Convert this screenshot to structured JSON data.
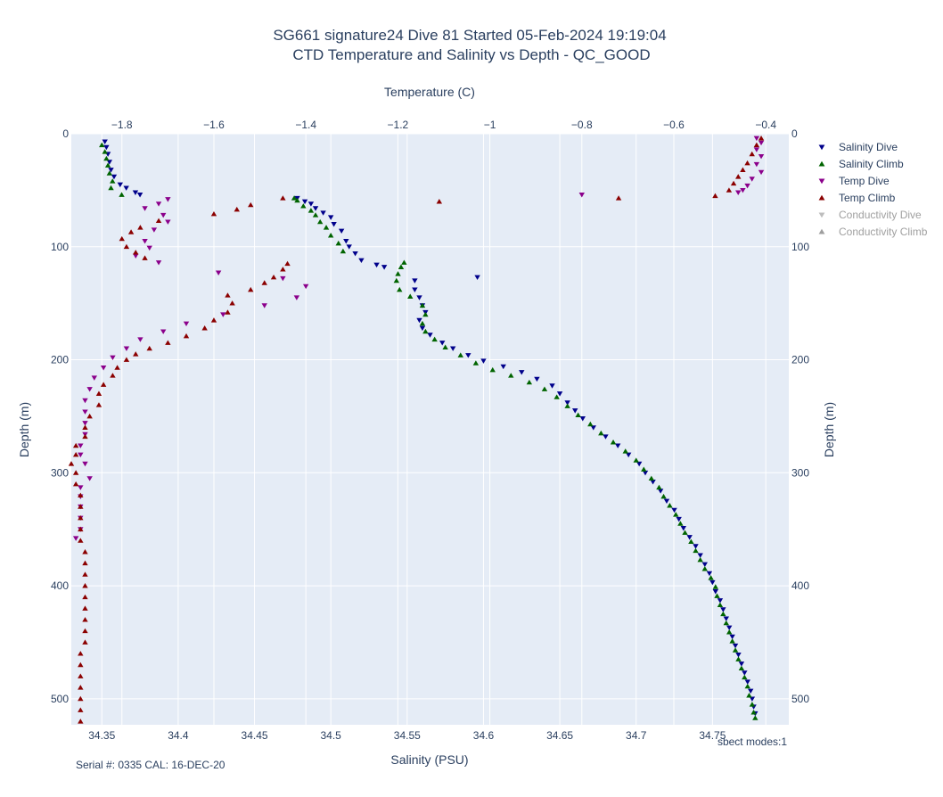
{
  "chart_data": {
    "type": "scatter",
    "title": "SG661 signature24 Dive 81 Started 05-Feb-2024 19:19:04",
    "subtitle": "CTD Temperature and Salinity vs Depth - QC_GOOD",
    "xlabel": "Salinity (PSU)",
    "x2label": "Temperature (C)",
    "ylabel": "Depth (m)",
    "y2label": "Depth (m)",
    "xlim": [
      34.33,
      34.8
    ],
    "x2lim": [
      -1.91,
      -0.35
    ],
    "ylim": [
      523,
      0
    ],
    "xticks": [
      34.35,
      34.4,
      34.45,
      34.5,
      34.55,
      34.6,
      34.65,
      34.7,
      34.75
    ],
    "xticklabels": [
      "34.35",
      "34.4",
      "34.45",
      "34.5",
      "34.55",
      "34.6",
      "34.65",
      "34.7",
      "34.75"
    ],
    "x2ticks": [
      -1.8,
      -1.6,
      -1.4,
      -1.2,
      -1.0,
      -0.8,
      -0.6,
      -0.4
    ],
    "x2ticklabels": [
      "−1.8",
      "−1.6",
      "−1.4",
      "−1.2",
      "−1",
      "−0.8",
      "−0.6",
      "−0.4"
    ],
    "yticks": [
      0,
      100,
      200,
      300,
      400,
      500
    ],
    "yticklabels": [
      "0",
      "100",
      "200",
      "300",
      "400",
      "500"
    ],
    "y2ticklabels": [
      "0",
      "100",
      "200",
      "300",
      "400",
      "500"
    ],
    "grid": true,
    "legend_position": "top-right",
    "series": [
      {
        "name": "Salinity Dive",
        "axis": "x",
        "marker": "triangle-down",
        "color": "#00008b",
        "points": [
          [
            34.352,
            7
          ],
          [
            34.353,
            12
          ],
          [
            34.354,
            18
          ],
          [
            34.355,
            25
          ],
          [
            34.356,
            32
          ],
          [
            34.358,
            38
          ],
          [
            34.362,
            45
          ],
          [
            34.366,
            48
          ],
          [
            34.372,
            52
          ],
          [
            34.375,
            54
          ],
          [
            34.478,
            57
          ],
          [
            34.483,
            60
          ],
          [
            34.487,
            62
          ],
          [
            34.49,
            66
          ],
          [
            34.495,
            70
          ],
          [
            34.5,
            74
          ],
          [
            34.502,
            80
          ],
          [
            34.507,
            86
          ],
          [
            34.51,
            95
          ],
          [
            34.512,
            100
          ],
          [
            34.516,
            106
          ],
          [
            34.52,
            112
          ],
          [
            34.53,
            116
          ],
          [
            34.535,
            118
          ],
          [
            34.596,
            127
          ],
          [
            34.555,
            130
          ],
          [
            34.555,
            138
          ],
          [
            34.558,
            145
          ],
          [
            34.56,
            152
          ],
          [
            34.562,
            158
          ],
          [
            34.558,
            165
          ],
          [
            34.56,
            172
          ],
          [
            34.565,
            178
          ],
          [
            34.573,
            185
          ],
          [
            34.58,
            190
          ],
          [
            34.59,
            196
          ],
          [
            34.6,
            201
          ],
          [
            34.613,
            206
          ],
          [
            34.625,
            211
          ],
          [
            34.635,
            217
          ],
          [
            34.645,
            223
          ],
          [
            34.65,
            230
          ],
          [
            34.655,
            238
          ],
          [
            34.66,
            245
          ],
          [
            34.665,
            252
          ],
          [
            34.672,
            260
          ],
          [
            34.68,
            268
          ],
          [
            34.688,
            276
          ],
          [
            34.695,
            284
          ],
          [
            34.702,
            292
          ],
          [
            34.706,
            300
          ],
          [
            34.711,
            308
          ],
          [
            34.716,
            316
          ],
          [
            34.72,
            325
          ],
          [
            34.725,
            333
          ],
          [
            34.728,
            341
          ],
          [
            34.731,
            349
          ],
          [
            34.735,
            357
          ],
          [
            34.739,
            365
          ],
          [
            34.742,
            373
          ],
          [
            34.745,
            381
          ],
          [
            34.748,
            389
          ],
          [
            34.75,
            397
          ],
          [
            34.752,
            405
          ],
          [
            34.755,
            413
          ],
          [
            34.757,
            421
          ],
          [
            34.759,
            429
          ],
          [
            34.761,
            437
          ],
          [
            34.763,
            445
          ],
          [
            34.765,
            453
          ],
          [
            34.767,
            461
          ],
          [
            34.769,
            469
          ],
          [
            34.771,
            477
          ],
          [
            34.773,
            485
          ],
          [
            34.775,
            493
          ],
          [
            34.776,
            500
          ],
          [
            34.777,
            507
          ],
          [
            34.778,
            513
          ]
        ]
      },
      {
        "name": "Salinity Climb",
        "axis": "x",
        "marker": "triangle-up",
        "color": "#006400",
        "points": [
          [
            34.778,
            517
          ],
          [
            34.777,
            512
          ],
          [
            34.776,
            505
          ],
          [
            34.774,
            497
          ],
          [
            34.773,
            489
          ],
          [
            34.771,
            481
          ],
          [
            34.769,
            473
          ],
          [
            34.767,
            465
          ],
          [
            34.765,
            457
          ],
          [
            34.763,
            449
          ],
          [
            34.761,
            441
          ],
          [
            34.759,
            433
          ],
          [
            34.757,
            425
          ],
          [
            34.755,
            417
          ],
          [
            34.753,
            409
          ],
          [
            34.752,
            401
          ],
          [
            34.749,
            393
          ],
          [
            34.745,
            385
          ],
          [
            34.742,
            377
          ],
          [
            34.739,
            369
          ],
          [
            34.736,
            361
          ],
          [
            34.732,
            353
          ],
          [
            34.729,
            345
          ],
          [
            34.726,
            337
          ],
          [
            34.722,
            329
          ],
          [
            34.718,
            321
          ],
          [
            34.715,
            313
          ],
          [
            34.71,
            305
          ],
          [
            34.705,
            297
          ],
          [
            34.7,
            289
          ],
          [
            34.693,
            281
          ],
          [
            34.685,
            273
          ],
          [
            34.677,
            265
          ],
          [
            34.67,
            257
          ],
          [
            34.662,
            249
          ],
          [
            34.655,
            241
          ],
          [
            34.648,
            233
          ],
          [
            34.64,
            226
          ],
          [
            34.63,
            220
          ],
          [
            34.618,
            214
          ],
          [
            34.606,
            209
          ],
          [
            34.595,
            203
          ],
          [
            34.585,
            196
          ],
          [
            34.575,
            189
          ],
          [
            34.568,
            182
          ],
          [
            34.562,
            175
          ],
          [
            34.56,
            168
          ],
          [
            34.562,
            160
          ],
          [
            34.56,
            152
          ],
          [
            34.552,
            144
          ],
          [
            34.545,
            138
          ],
          [
            34.543,
            130
          ],
          [
            34.544,
            124
          ],
          [
            34.546,
            118
          ],
          [
            34.548,
            114
          ],
          [
            34.508,
            104
          ],
          [
            34.505,
            97
          ],
          [
            34.5,
            90
          ],
          [
            34.497,
            83
          ],
          [
            34.493,
            78
          ],
          [
            34.49,
            72
          ],
          [
            34.487,
            68
          ],
          [
            34.482,
            64
          ],
          [
            34.478,
            59
          ],
          [
            34.476,
            57
          ],
          [
            34.363,
            54
          ],
          [
            34.356,
            48
          ],
          [
            34.357,
            42
          ],
          [
            34.355,
            35
          ],
          [
            34.354,
            28
          ],
          [
            34.353,
            22
          ],
          [
            34.352,
            16
          ],
          [
            34.35,
            10
          ]
        ]
      },
      {
        "name": "Temp Dive",
        "axis": "x2",
        "marker": "triangle-down",
        "color": "#8b008b",
        "points": [
          [
            -0.42,
            4
          ],
          [
            -0.41,
            8
          ],
          [
            -0.42,
            14
          ],
          [
            -0.41,
            20
          ],
          [
            -0.42,
            27
          ],
          [
            -0.41,
            34
          ],
          [
            -0.43,
            40
          ],
          [
            -0.44,
            46
          ],
          [
            -0.45,
            50
          ],
          [
            -0.46,
            52
          ],
          [
            -0.8,
            54
          ],
          [
            -1.7,
            58
          ],
          [
            -1.72,
            62
          ],
          [
            -1.75,
            66
          ],
          [
            -1.71,
            72
          ],
          [
            -1.7,
            78
          ],
          [
            -1.73,
            85
          ],
          [
            -1.75,
            95
          ],
          [
            -1.74,
            101
          ],
          [
            -1.77,
            108
          ],
          [
            -1.72,
            114
          ],
          [
            -1.59,
            123
          ],
          [
            -1.45,
            128
          ],
          [
            -1.4,
            135
          ],
          [
            -1.42,
            145
          ],
          [
            -1.49,
            152
          ],
          [
            -1.58,
            160
          ],
          [
            -1.66,
            168
          ],
          [
            -1.71,
            175
          ],
          [
            -1.76,
            182
          ],
          [
            -1.79,
            190
          ],
          [
            -1.82,
            198
          ],
          [
            -1.84,
            207
          ],
          [
            -1.86,
            216
          ],
          [
            -1.87,
            226
          ],
          [
            -1.88,
            236
          ],
          [
            -1.88,
            246
          ],
          [
            -1.88,
            256
          ],
          [
            -1.88,
            266
          ],
          [
            -1.89,
            276
          ],
          [
            -1.89,
            284
          ],
          [
            -1.88,
            292
          ],
          [
            -1.87,
            305
          ],
          [
            -1.89,
            313
          ],
          [
            -1.89,
            321
          ],
          [
            -1.89,
            330
          ],
          [
            -1.89,
            340
          ],
          [
            -1.89,
            350
          ],
          [
            -1.9,
            358
          ]
        ]
      },
      {
        "name": "Temp Climb",
        "axis": "x2",
        "marker": "triangle-up",
        "color": "#8b0000",
        "points": [
          [
            -1.89,
            520
          ],
          [
            -1.89,
            510
          ],
          [
            -1.89,
            500
          ],
          [
            -1.89,
            490
          ],
          [
            -1.89,
            480
          ],
          [
            -1.89,
            470
          ],
          [
            -1.89,
            460
          ],
          [
            -1.88,
            450
          ],
          [
            -1.88,
            440
          ],
          [
            -1.88,
            430
          ],
          [
            -1.88,
            420
          ],
          [
            -1.88,
            410
          ],
          [
            -1.88,
            400
          ],
          [
            -1.88,
            390
          ],
          [
            -1.88,
            380
          ],
          [
            -1.88,
            370
          ],
          [
            -1.89,
            360
          ],
          [
            -1.89,
            350
          ],
          [
            -1.89,
            340
          ],
          [
            -1.89,
            330
          ],
          [
            -1.89,
            320
          ],
          [
            -1.9,
            310
          ],
          [
            -1.9,
            300
          ],
          [
            -1.91,
            292
          ],
          [
            -1.9,
            284
          ],
          [
            -1.9,
            276
          ],
          [
            -1.88,
            268
          ],
          [
            -1.88,
            260
          ],
          [
            -1.87,
            250
          ],
          [
            -1.85,
            240
          ],
          [
            -1.85,
            230
          ],
          [
            -1.84,
            222
          ],
          [
            -1.82,
            214
          ],
          [
            -1.81,
            207
          ],
          [
            -1.79,
            200
          ],
          [
            -1.77,
            195
          ],
          [
            -1.74,
            190
          ],
          [
            -1.7,
            185
          ],
          [
            -1.66,
            179
          ],
          [
            -1.62,
            172
          ],
          [
            -1.6,
            165
          ],
          [
            -1.57,
            158
          ],
          [
            -1.56,
            150
          ],
          [
            -1.57,
            143
          ],
          [
            -1.52,
            138
          ],
          [
            -1.49,
            132
          ],
          [
            -1.47,
            127
          ],
          [
            -1.45,
            120
          ],
          [
            -1.44,
            115
          ],
          [
            -1.75,
            110
          ],
          [
            -1.77,
            105
          ],
          [
            -1.79,
            100
          ],
          [
            -1.8,
            93
          ],
          [
            -1.78,
            87
          ],
          [
            -1.76,
            83
          ],
          [
            -1.72,
            77
          ],
          [
            -1.6,
            71
          ],
          [
            -1.55,
            67
          ],
          [
            -1.52,
            63
          ],
          [
            -1.45,
            57
          ],
          [
            -1.11,
            60
          ],
          [
            -0.72,
            57
          ],
          [
            -0.51,
            55
          ],
          [
            -0.48,
            50
          ],
          [
            -0.47,
            44
          ],
          [
            -0.46,
            38
          ],
          [
            -0.45,
            32
          ],
          [
            -0.44,
            26
          ],
          [
            -0.43,
            18
          ],
          [
            -0.42,
            10
          ],
          [
            -0.41,
            4
          ]
        ]
      },
      {
        "name": "Conductivity Dive",
        "axis": "none",
        "marker": "triangle-down",
        "color": "#bdbdbd",
        "visible": false,
        "points": []
      },
      {
        "name": "Conductivity Climb",
        "axis": "none",
        "marker": "triangle-up",
        "color": "#9e9e9e",
        "visible": false,
        "points": []
      }
    ],
    "annotations": {
      "serial": "Serial #: 0335  CAL: 16-DEC-20",
      "modes": "sbect modes:1"
    }
  },
  "colors": {
    "plot_bg": "#e5ecf6",
    "grid": "#ffffff",
    "text": "#2a3f5f",
    "legend_hidden_text": "#a0a0a0"
  }
}
